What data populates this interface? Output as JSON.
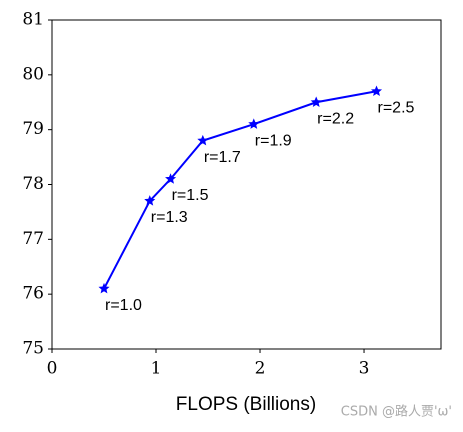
{
  "chart_data": {
    "type": "line",
    "x_label": "FLOPS (Billions)",
    "x": [
      0.5,
      0.94,
      1.14,
      1.45,
      1.94,
      2.54,
      3.12
    ],
    "series": [
      {
        "color": "#0000ff",
        "values": [
          76.1,
          77.7,
          78.1,
          78.8,
          79.1,
          79.5,
          79.7
        ]
      }
    ],
    "annotations": [
      "r=1.0",
      "r=1.3",
      "r=1.5",
      "r=1.7",
      "r=1.9",
      "r=2.2",
      "r=2.5"
    ],
    "xlim": [
      0,
      3.74
    ],
    "ylim": [
      75,
      81
    ],
    "xticks": [
      0,
      1,
      2,
      3
    ],
    "yticks": [
      75,
      76,
      77,
      78,
      79,
      80,
      81
    ],
    "watermark": "CSDN @路人贾'ω'"
  }
}
